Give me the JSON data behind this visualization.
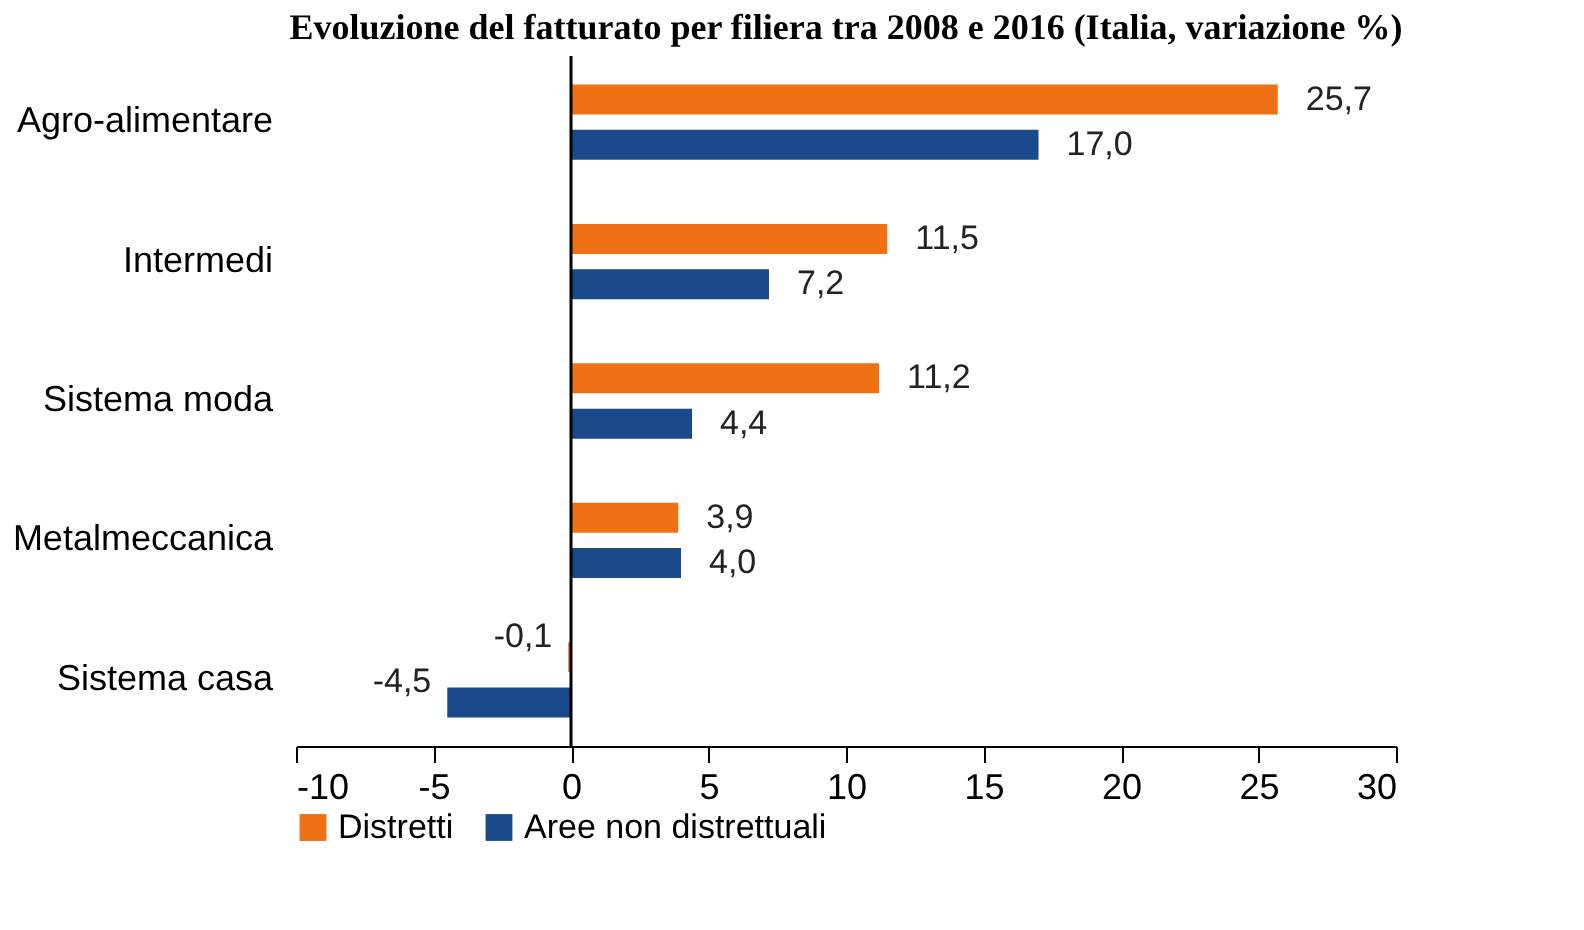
{
  "chart_data": {
    "type": "bar",
    "orientation": "horizontal",
    "title": "Evoluzione del fatturato per filiera tra 2008 e 2016 (Italia, variazione %)",
    "categories": [
      "Agro-alimentare",
      "Intermedi",
      "Sistema moda",
      "Metalmeccanica",
      "Sistema casa"
    ],
    "series": [
      {
        "name": "Distretti",
        "color": "#f07014",
        "values": [
          25.7,
          11.5,
          11.2,
          3.9,
          -0.1
        ],
        "value_labels": [
          "25,7",
          "11,5",
          "11,2",
          "3,9",
          "-0,1"
        ]
      },
      {
        "name": "Aree non distrettuali",
        "color": "#1b4a8c",
        "values": [
          17.0,
          7.2,
          4.4,
          4.0,
          -4.5
        ],
        "value_labels": [
          "17,0",
          "7,2",
          "4,4",
          "4,0",
          "-4,5"
        ]
      }
    ],
    "xlim": [
      -10,
      30
    ],
    "xticks": [
      -10,
      -5,
      0,
      5,
      10,
      15,
      20,
      25,
      30
    ],
    "ref_lines": [
      {
        "axis": "x",
        "value": 0,
        "color": "#000000"
      }
    ],
    "grid": false,
    "legend": "bottom"
  }
}
